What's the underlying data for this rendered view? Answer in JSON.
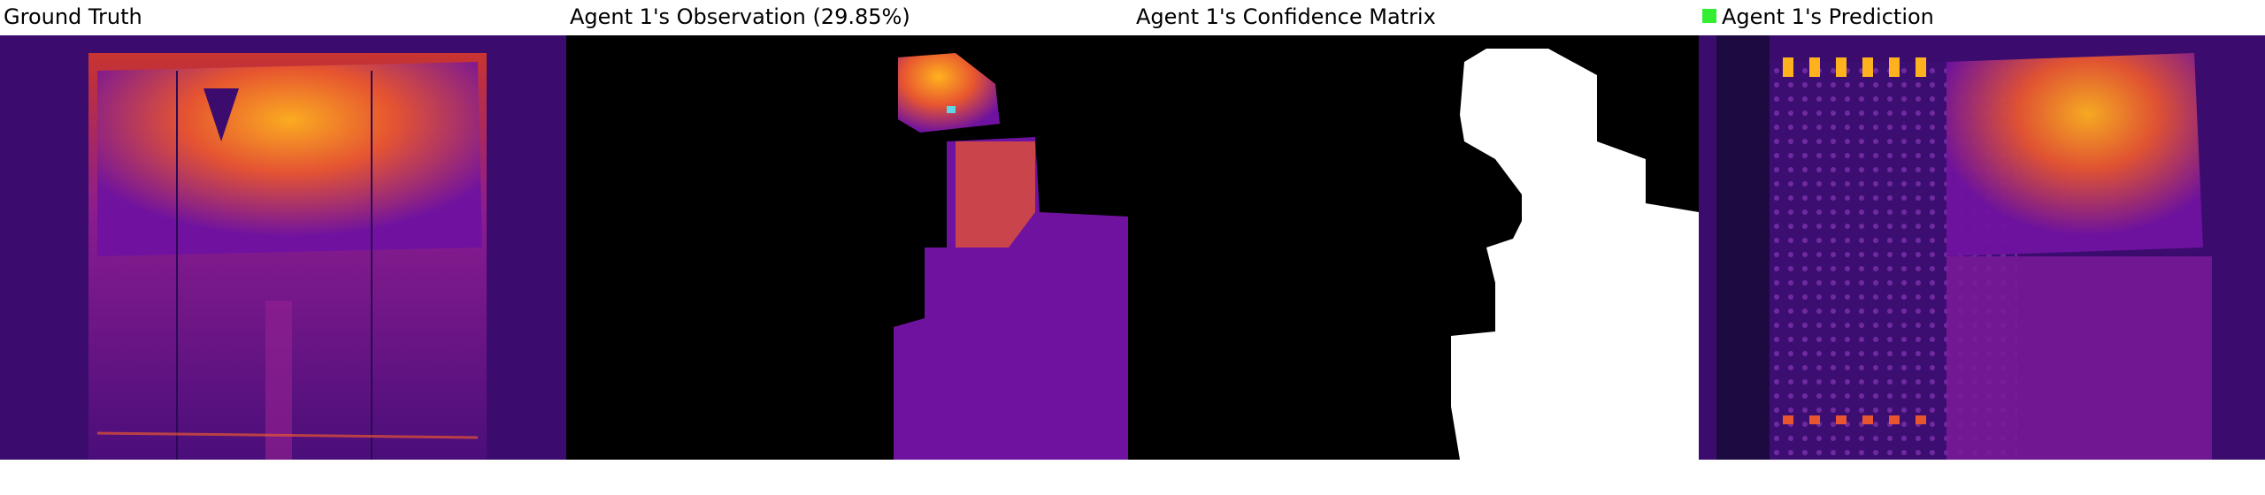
{
  "panels": [
    {
      "id": "ground-truth",
      "title": "Ground Truth"
    },
    {
      "id": "observation",
      "title": "Agent 1's Observation (29.85%)"
    },
    {
      "id": "confidence",
      "title": "Agent 1's Confidence Matrix"
    },
    {
      "id": "prediction",
      "title": "Agent 1's Prediction",
      "legend_color": "#33ee33"
    }
  ],
  "colors": {
    "bg_dark": "#2a0a55",
    "plasma_mid": "#6f12a0",
    "plasma_hot": "#e8562f",
    "plasma_bright": "#ffb21e",
    "black": "#000000",
    "white": "#ffffff",
    "legend_green": "#33ee33"
  }
}
